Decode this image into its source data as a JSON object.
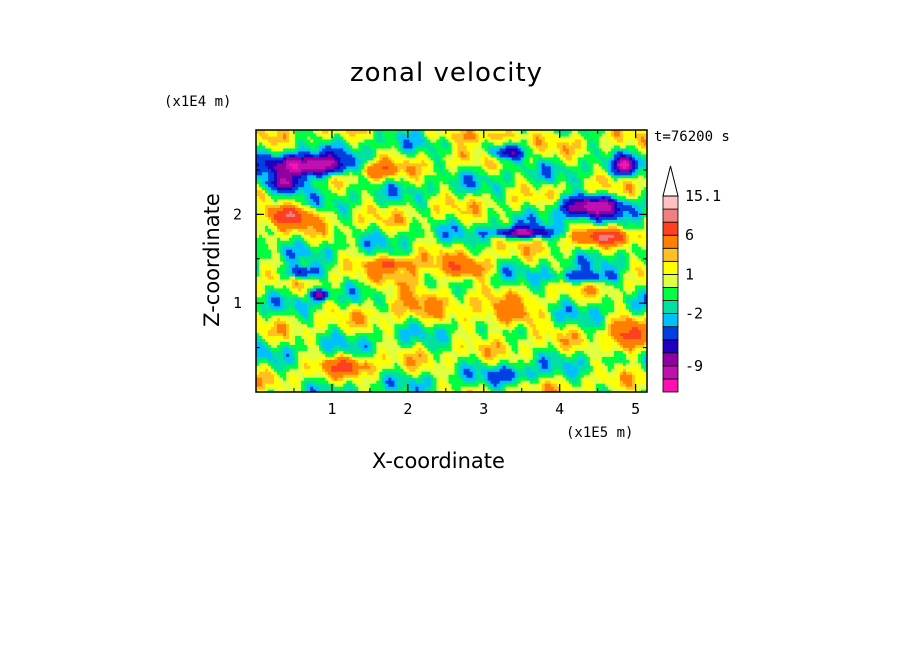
{
  "chart_data": {
    "type": "heatmap",
    "title": "zonal velocity",
    "xlabel": "X-coordinate",
    "ylabel": "Z-coordinate",
    "x_unit": "(x1E5 m)",
    "y_unit": "(x1E4 m)",
    "time_label": "t=76200 s",
    "xlim": [
      0,
      5.15
    ],
    "ylim": [
      0,
      2.95
    ],
    "x_ticks": [
      1,
      2,
      3,
      4,
      5
    ],
    "y_ticks": [
      1,
      2
    ],
    "colorbar": {
      "levels": [
        -13,
        -11,
        -9,
        -7,
        -5,
        -3,
        -2,
        -1,
        0,
        1,
        2,
        3,
        6,
        9,
        12,
        15.1
      ],
      "labels": [
        "15.1",
        "6",
        "1",
        "-2",
        "-9"
      ],
      "label_values": [
        15.1,
        6,
        1,
        -2,
        -9
      ],
      "colors": [
        "#ff10b0",
        "#c010b0",
        "#9000a0",
        "#2000c0",
        "#0040e0",
        "#00c0ff",
        "#00e0a0",
        "#00ff40",
        "#e0ff40",
        "#ffff00",
        "#ffc020",
        "#ff8000",
        "#ff4020",
        "#f08080",
        "#ffc0c0"
      ],
      "extend": "max"
    }
  }
}
